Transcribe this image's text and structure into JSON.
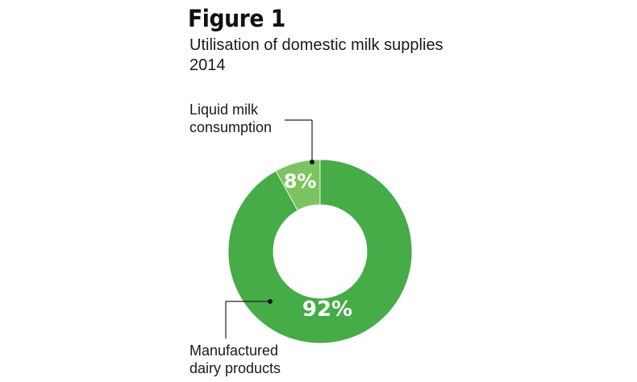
{
  "figure": {
    "label": "Figure 1",
    "title": "Utilisation of domestic milk supplies 2014"
  },
  "chart_data": {
    "type": "pie",
    "variant": "donut",
    "title": "Utilisation of domestic milk supplies 2014",
    "slices": [
      {
        "name": "Liquid milk consumption",
        "name_lines": [
          "Liquid milk",
          "consumption"
        ],
        "value": 8,
        "label": "8%",
        "color": "#7cc462"
      },
      {
        "name": "Manufactured dairy products",
        "name_lines": [
          "Manufactured",
          "dairy products"
        ],
        "value": 92,
        "label": "92%",
        "color": "#45ac47"
      }
    ],
    "start_angle_deg": 0,
    "direction": "counterclockwise",
    "legend": "none"
  }
}
